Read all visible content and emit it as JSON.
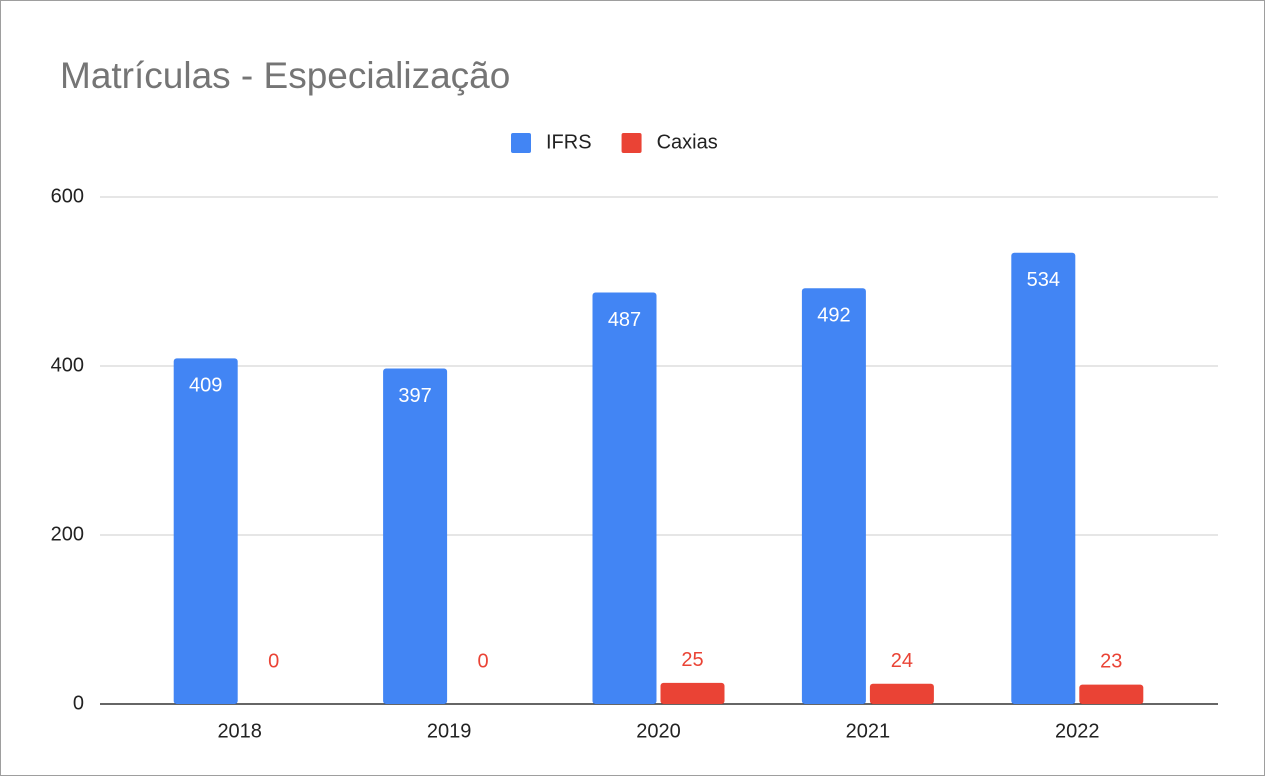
{
  "chart_data": {
    "type": "bar",
    "title": "Matrículas - Especialização",
    "categories": [
      "2018",
      "2019",
      "2020",
      "2021",
      "2022"
    ],
    "series": [
      {
        "name": "IFRS",
        "color": "#4285f4",
        "values": [
          409,
          397,
          487,
          492,
          534
        ]
      },
      {
        "name": "Caxias",
        "color": "#ea4335",
        "values": [
          0,
          0,
          25,
          24,
          23
        ]
      }
    ],
    "ylim": [
      0,
      600
    ],
    "yticks": [
      0,
      200,
      400,
      600
    ],
    "grid": true,
    "legend": "top"
  }
}
